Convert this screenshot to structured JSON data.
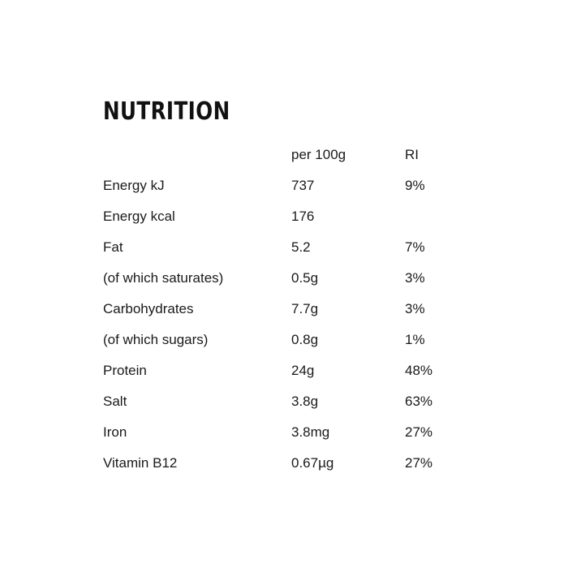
{
  "title": "NUTRITION",
  "header": {
    "per_100g": "per 100g",
    "ri": "RI"
  },
  "rows": [
    {
      "name": "Energy kJ",
      "per": "737",
      "ri": "9%"
    },
    {
      "name": "Energy kcal",
      "per": "176",
      "ri": ""
    },
    {
      "name": "Fat",
      "per": "5.2",
      "ri": "7%"
    },
    {
      "name": "(of which saturates)",
      "per": "0.5g",
      "ri": "3%"
    },
    {
      "name": "Carbohydrates",
      "per": "7.7g",
      "ri": "3%"
    },
    {
      "name": "(of which sugars)",
      "per": "0.8g",
      "ri": "1%"
    },
    {
      "name": "Protein",
      "per": "24g",
      "ri": "48%"
    },
    {
      "name": "Salt",
      "per": "3.8g",
      "ri": "63%"
    },
    {
      "name": "Iron",
      "per": "3.8mg",
      "ri": "27%"
    },
    {
      "name": "Vitamin B12",
      "per": "0.67µg",
      "ri": "27%"
    }
  ]
}
